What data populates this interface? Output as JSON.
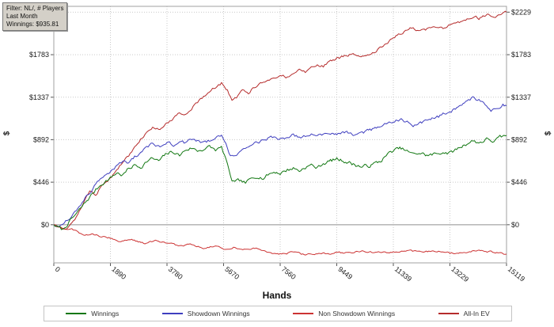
{
  "filter_box": {
    "line1": "Filter: NL/, # Players",
    "line2": "Last Month",
    "line3": "Winnings: $935.81"
  },
  "chart_data": {
    "type": "line",
    "title": "",
    "xlabel": "Hands",
    "ylabel": "$",
    "xlim": [
      0,
      15119
    ],
    "ylim": [
      -400,
      2290
    ],
    "x_ticks": [
      0,
      1890,
      3780,
      5670,
      7560,
      9449,
      11339,
      13229,
      15119
    ],
    "y_ticks": [
      0,
      446,
      892,
      1337,
      1783,
      2229
    ],
    "grid": "dotted",
    "legend_position": "bottom",
    "colors": {
      "grid": "#c9c9c9",
      "zero_line": "#8f8f8f",
      "border": "#a0a0a0",
      "tick": "#555555",
      "text": "#1a1a1a"
    },
    "series": [
      {
        "name": "Winnings",
        "color": "#117711",
        "noise": 17,
        "points": [
          [
            0,
            0
          ],
          [
            150,
            -30
          ],
          [
            300,
            -55
          ],
          [
            450,
            5
          ],
          [
            600,
            60
          ],
          [
            800,
            130
          ],
          [
            1000,
            210
          ],
          [
            1200,
            290
          ],
          [
            1400,
            365
          ],
          [
            1600,
            430
          ],
          [
            1890,
            490
          ],
          [
            2100,
            545
          ],
          [
            2300,
            520
          ],
          [
            2500,
            585
          ],
          [
            2700,
            625
          ],
          [
            2900,
            605
          ],
          [
            3100,
            665
          ],
          [
            3300,
            695
          ],
          [
            3500,
            665
          ],
          [
            3780,
            745
          ],
          [
            4000,
            765
          ],
          [
            4200,
            725
          ],
          [
            4400,
            785
          ],
          [
            4600,
            805
          ],
          [
            4800,
            775
          ],
          [
            5000,
            795
          ],
          [
            5200,
            815
          ],
          [
            5400,
            785
          ],
          [
            5600,
            805
          ],
          [
            5750,
            690
          ],
          [
            5850,
            555
          ],
          [
            5950,
            465
          ],
          [
            6050,
            440
          ],
          [
            6200,
            460
          ],
          [
            6400,
            435
          ],
          [
            6600,
            480
          ],
          [
            6800,
            515
          ],
          [
            7000,
            490
          ],
          [
            7200,
            535
          ],
          [
            7400,
            555
          ],
          [
            7560,
            540
          ],
          [
            7800,
            575
          ],
          [
            8000,
            595
          ],
          [
            8200,
            565
          ],
          [
            8400,
            605
          ],
          [
            8600,
            625
          ],
          [
            8800,
            595
          ],
          [
            9000,
            645
          ],
          [
            9200,
            665
          ],
          [
            9449,
            690
          ],
          [
            9700,
            670
          ],
          [
            10000,
            635
          ],
          [
            10300,
            605
          ],
          [
            10600,
            625
          ],
          [
            10900,
            665
          ],
          [
            11100,
            725
          ],
          [
            11339,
            780
          ],
          [
            11600,
            800
          ],
          [
            11800,
            770
          ],
          [
            12000,
            735
          ],
          [
            12200,
            755
          ],
          [
            12500,
            725
          ],
          [
            12800,
            745
          ],
          [
            13000,
            765
          ],
          [
            13229,
            750
          ],
          [
            13500,
            800
          ],
          [
            13800,
            855
          ],
          [
            14000,
            880
          ],
          [
            14200,
            860
          ],
          [
            14500,
            900
          ],
          [
            14700,
            872
          ],
          [
            14900,
            912
          ],
          [
            15119,
            936
          ]
        ]
      },
      {
        "name": "Showdown Winnings",
        "color": "#3f3fbf",
        "noise": 15,
        "points": [
          [
            0,
            0
          ],
          [
            200,
            -20
          ],
          [
            400,
            30
          ],
          [
            600,
            95
          ],
          [
            800,
            165
          ],
          [
            1000,
            265
          ],
          [
            1200,
            345
          ],
          [
            1400,
            425
          ],
          [
            1600,
            505
          ],
          [
            1890,
            565
          ],
          [
            2100,
            620
          ],
          [
            2300,
            660
          ],
          [
            2500,
            645
          ],
          [
            2700,
            705
          ],
          [
            2900,
            755
          ],
          [
            3100,
            805
          ],
          [
            3300,
            845
          ],
          [
            3500,
            815
          ],
          [
            3780,
            865
          ],
          [
            4000,
            835
          ],
          [
            4200,
            875
          ],
          [
            4400,
            855
          ],
          [
            4600,
            895
          ],
          [
            4800,
            875
          ],
          [
            5000,
            855
          ],
          [
            5200,
            885
          ],
          [
            5400,
            905
          ],
          [
            5600,
            925
          ],
          [
            5750,
            875
          ],
          [
            5850,
            765
          ],
          [
            5950,
            725
          ],
          [
            6100,
            745
          ],
          [
            6300,
            785
          ],
          [
            6500,
            825
          ],
          [
            6700,
            855
          ],
          [
            6900,
            875
          ],
          [
            7100,
            895
          ],
          [
            7300,
            915
          ],
          [
            7560,
            890
          ],
          [
            7800,
            925
          ],
          [
            8000,
            945
          ],
          [
            8200,
            915
          ],
          [
            8400,
            935
          ],
          [
            8600,
            955
          ],
          [
            8800,
            925
          ],
          [
            9000,
            945
          ],
          [
            9200,
            965
          ],
          [
            9449,
            950
          ],
          [
            9700,
            975
          ],
          [
            10000,
            945
          ],
          [
            10300,
            965
          ],
          [
            10600,
            995
          ],
          [
            10900,
            1025
          ],
          [
            11100,
            1055
          ],
          [
            11339,
            1085
          ],
          [
            11600,
            1105
          ],
          [
            11800,
            1075
          ],
          [
            12000,
            1045
          ],
          [
            12200,
            1065
          ],
          [
            12500,
            1095
          ],
          [
            12800,
            1125
          ],
          [
            13000,
            1155
          ],
          [
            13229,
            1185
          ],
          [
            13500,
            1235
          ],
          [
            13800,
            1295
          ],
          [
            14000,
            1335
          ],
          [
            14200,
            1305
          ],
          [
            14400,
            1255
          ],
          [
            14600,
            1185
          ],
          [
            14800,
            1225
          ],
          [
            15000,
            1265
          ],
          [
            15119,
            1248
          ]
        ]
      },
      {
        "name": "Non Showdown Winnings",
        "color": "#cc3333",
        "noise": 8,
        "points": [
          [
            0,
            0
          ],
          [
            200,
            -25
          ],
          [
            400,
            -55
          ],
          [
            600,
            -40
          ],
          [
            800,
            -80
          ],
          [
            1000,
            -110
          ],
          [
            1300,
            -95
          ],
          [
            1600,
            -125
          ],
          [
            1890,
            -140
          ],
          [
            2200,
            -175
          ],
          [
            2600,
            -155
          ],
          [
            3000,
            -195
          ],
          [
            3400,
            -170
          ],
          [
            3780,
            -190
          ],
          [
            4200,
            -225
          ],
          [
            4600,
            -205
          ],
          [
            5000,
            -245
          ],
          [
            5400,
            -225
          ],
          [
            5670,
            -255
          ],
          [
            6000,
            -238
          ],
          [
            6400,
            -265
          ],
          [
            6800,
            -248
          ],
          [
            7200,
            -295
          ],
          [
            7560,
            -308
          ],
          [
            8000,
            -288
          ],
          [
            8400,
            -315
          ],
          [
            8800,
            -298
          ],
          [
            9200,
            -308
          ],
          [
            9449,
            -290
          ],
          [
            9800,
            -298
          ],
          [
            10300,
            -278
          ],
          [
            10800,
            -298
          ],
          [
            11339,
            -288
          ],
          [
            11800,
            -268
          ],
          [
            12300,
            -288
          ],
          [
            12800,
            -278
          ],
          [
            13229,
            -298
          ],
          [
            13700,
            -288
          ],
          [
            14200,
            -268
          ],
          [
            14700,
            -288
          ],
          [
            15119,
            -309
          ]
        ]
      },
      {
        "name": "All-In EV",
        "color": "#b52b2b",
        "noise": 13,
        "points": [
          [
            0,
            0
          ],
          [
            200,
            -30
          ],
          [
            400,
            -60
          ],
          [
            600,
            15
          ],
          [
            800,
            105
          ],
          [
            1000,
            225
          ],
          [
            1200,
            355
          ],
          [
            1400,
            305
          ],
          [
            1600,
            425
          ],
          [
            1890,
            485
          ],
          [
            2100,
            565
          ],
          [
            2300,
            655
          ],
          [
            2500,
            725
          ],
          [
            2700,
            805
          ],
          [
            2900,
            905
          ],
          [
            3100,
            955
          ],
          [
            3300,
            1025
          ],
          [
            3500,
            995
          ],
          [
            3780,
            1065
          ],
          [
            4000,
            1125
          ],
          [
            4200,
            1185
          ],
          [
            4400,
            1155
          ],
          [
            4600,
            1225
          ],
          [
            4800,
            1285
          ],
          [
            5000,
            1335
          ],
          [
            5200,
            1385
          ],
          [
            5400,
            1445
          ],
          [
            5600,
            1485
          ],
          [
            5800,
            1405
          ],
          [
            5950,
            1305
          ],
          [
            6100,
            1325
          ],
          [
            6300,
            1405
          ],
          [
            6500,
            1385
          ],
          [
            6700,
            1445
          ],
          [
            6900,
            1475
          ],
          [
            7100,
            1505
          ],
          [
            7300,
            1535
          ],
          [
            7560,
            1565
          ],
          [
            7800,
            1545
          ],
          [
            8000,
            1595
          ],
          [
            8200,
            1625
          ],
          [
            8400,
            1605
          ],
          [
            8600,
            1655
          ],
          [
            8800,
            1685
          ],
          [
            9000,
            1665
          ],
          [
            9200,
            1705
          ],
          [
            9449,
            1745
          ],
          [
            9700,
            1765
          ],
          [
            10000,
            1785
          ],
          [
            10300,
            1765
          ],
          [
            10600,
            1805
          ],
          [
            10900,
            1845
          ],
          [
            11100,
            1905
          ],
          [
            11339,
            1965
          ],
          [
            11600,
            2005
          ],
          [
            11800,
            2045
          ],
          [
            12000,
            2065
          ],
          [
            12200,
            2035
          ],
          [
            12500,
            2055
          ],
          [
            12800,
            2085
          ],
          [
            13000,
            2065
          ],
          [
            13229,
            2095
          ],
          [
            13500,
            2115
          ],
          [
            13800,
            2155
          ],
          [
            14000,
            2185
          ],
          [
            14200,
            2165
          ],
          [
            14500,
            2205
          ],
          [
            14700,
            2175
          ],
          [
            14900,
            2215
          ],
          [
            15119,
            2229
          ]
        ]
      }
    ]
  }
}
